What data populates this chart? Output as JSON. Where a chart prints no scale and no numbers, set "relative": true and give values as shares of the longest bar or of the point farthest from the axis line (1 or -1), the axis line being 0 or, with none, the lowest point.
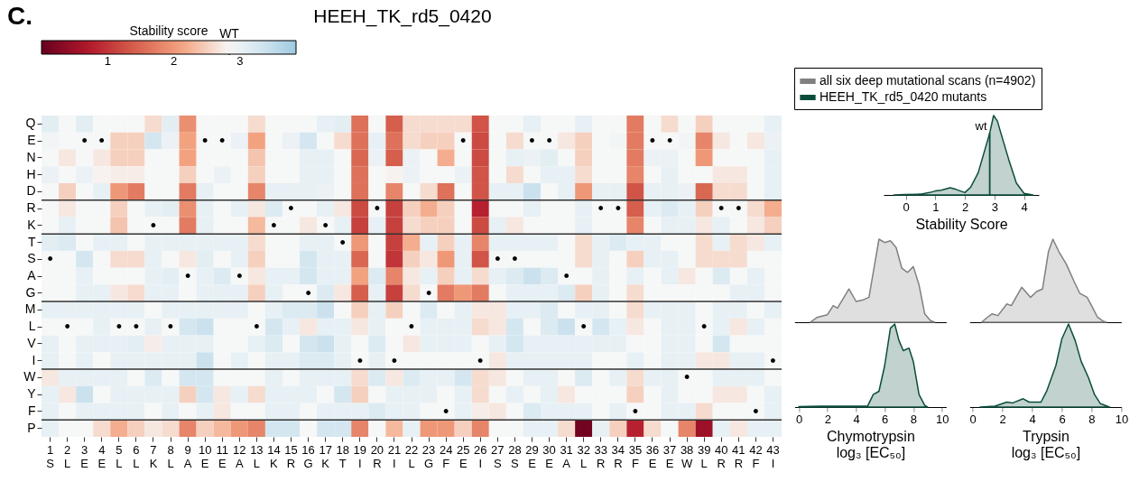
{
  "chart_data": [
    {
      "type": "heatmap",
      "title": "HEEH_TK_rd5_0420",
      "legend_title": "Stability score",
      "annotations": [
        "C.",
        "WT"
      ],
      "categories": [
        "1\nS",
        "2\nL",
        "3\nE",
        "4\nE",
        "5\nL",
        "6\nL",
        "7\nK",
        "8\nL",
        "9\nA",
        "10\nE",
        "11\nE",
        "12\nA",
        "13\nL",
        "14\nK",
        "15\nR",
        "16\nG",
        "17\nK",
        "18\nT",
        "19\nI",
        "20\nR",
        "21\nI",
        "22\nL",
        "23\nG",
        "24\nF",
        "25\nE",
        "26\nI",
        "27\nS",
        "28\nS",
        "29\nE",
        "30\nE",
        "31\nA",
        "32\nL",
        "33\nR",
        "34\nR",
        "35\nF",
        "36\nE",
        "37\nE",
        "38\nW",
        "39\nL",
        "40\nR",
        "41\nR",
        "42\nF",
        "43\nI"
      ],
      "y_categories": [
        "Q",
        "E",
        "N",
        "H",
        "D",
        "R",
        "K",
        "T",
        "S",
        "A",
        "G",
        "M",
        "L",
        "V",
        "I",
        "W",
        "Y",
        "F",
        "P"
      ],
      "clim": [
        0,
        3.85
      ],
      "cticks": [
        1,
        2,
        3
      ],
      "cells": [
        [
          3.1,
          2.85,
          3.1,
          2.85,
          2.85,
          2.85,
          2.6,
          3.1,
          1.9,
          2.85,
          2.85,
          2.85,
          2.6,
          2.85,
          2.85,
          2.85,
          3.05,
          3.1,
          1.6,
          2.85,
          1.4,
          2.6,
          2.6,
          2.6,
          2.6,
          1.3,
          2.85,
          2.85,
          3.05,
          2.85,
          2.85,
          3.05,
          2.85,
          2.85,
          1.7,
          2.85,
          2.6,
          2.85,
          2.5,
          2.85,
          2.85,
          2.85,
          3.05
        ],
        [
          2.9,
          2.85,
          2.85,
          2.85,
          2.5,
          2.5,
          3.3,
          3.0,
          2.1,
          2.85,
          2.85,
          3.0,
          2.1,
          2.85,
          3.0,
          3.3,
          2.85,
          2.6,
          1.6,
          3.05,
          1.6,
          2.6,
          2.5,
          2.5,
          2.85,
          1.2,
          2.85,
          2.6,
          2.85,
          2.85,
          2.7,
          2.5,
          2.85,
          2.9,
          1.7,
          2.85,
          2.85,
          2.9,
          1.8,
          2.7,
          2.85,
          2.7,
          3.0
        ],
        [
          2.85,
          2.7,
          2.85,
          2.7,
          2.5,
          2.5,
          2.85,
          2.85,
          2.1,
          2.85,
          2.85,
          2.85,
          2.4,
          2.85,
          2.85,
          3.05,
          3.05,
          2.85,
          1.5,
          3.0,
          1.4,
          3.0,
          2.85,
          2.2,
          2.85,
          1.2,
          2.85,
          3.05,
          3.0,
          3.1,
          2.85,
          2.5,
          2.85,
          2.85,
          1.7,
          3.0,
          3.0,
          2.85,
          2.0,
          2.85,
          2.85,
          2.85,
          3.05
        ],
        [
          3.0,
          2.85,
          3.0,
          2.8,
          2.75,
          2.75,
          2.85,
          2.85,
          2.5,
          2.85,
          3.0,
          2.85,
          2.5,
          2.85,
          2.85,
          3.05,
          3.05,
          2.85,
          1.6,
          2.85,
          2.8,
          3.0,
          2.85,
          2.85,
          3.0,
          1.3,
          2.85,
          2.6,
          2.85,
          3.05,
          3.05,
          2.6,
          2.85,
          2.85,
          1.8,
          2.85,
          3.05,
          2.85,
          2.85,
          2.7,
          2.7,
          2.85,
          3.05
        ],
        [
          2.85,
          2.5,
          2.85,
          3.05,
          2.0,
          1.7,
          2.85,
          2.85,
          1.7,
          3.05,
          2.85,
          2.85,
          1.8,
          3.05,
          3.05,
          3.05,
          3.0,
          2.85,
          1.6,
          2.85,
          1.8,
          2.85,
          2.6,
          1.6,
          2.85,
          1.3,
          3.05,
          3.05,
          3.4,
          2.85,
          3.05,
          2.0,
          3.05,
          3.05,
          1.3,
          3.05,
          3.05,
          3.0,
          1.5,
          2.6,
          2.6,
          2.85,
          3.05
        ],
        [
          2.85,
          2.7,
          2.85,
          2.85,
          2.5,
          2.85,
          3.05,
          3.1,
          1.9,
          3.05,
          2.85,
          3.05,
          2.7,
          3.2,
          2.85,
          2.85,
          3.05,
          2.7,
          1.2,
          2.85,
          1.1,
          2.5,
          2.2,
          2.5,
          2.85,
          0.8,
          2.85,
          2.85,
          3.05,
          2.85,
          2.85,
          3.05,
          2.85,
          2.85,
          1.4,
          3.05,
          3.2,
          3.05,
          2.5,
          2.85,
          2.85,
          2.6,
          2.2
        ],
        [
          2.85,
          3.05,
          2.85,
          2.85,
          2.4,
          2.85,
          2.85,
          2.85,
          1.7,
          3.05,
          2.85,
          2.85,
          2.3,
          2.85,
          2.85,
          2.7,
          2.85,
          3.05,
          1.1,
          3.05,
          1.1,
          2.6,
          2.5,
          2.5,
          2.85,
          1.2,
          3.05,
          2.7,
          2.85,
          2.85,
          2.85,
          3.05,
          2.85,
          2.85,
          1.8,
          2.85,
          3.05,
          3.05,
          2.7,
          3.05,
          2.85,
          2.7,
          2.5
        ],
        [
          3.1,
          3.2,
          2.85,
          3.05,
          3.05,
          2.85,
          3.05,
          3.05,
          3.05,
          3.05,
          3.05,
          3.05,
          2.6,
          2.85,
          2.85,
          3.05,
          3.05,
          2.85,
          2.0,
          2.85,
          1.1,
          2.2,
          3.05,
          2.5,
          3.05,
          1.8,
          3.05,
          3.05,
          3.05,
          3.05,
          2.85,
          2.6,
          3.05,
          3.2,
          3.05,
          3.05,
          2.85,
          2.85,
          2.6,
          3.05,
          2.6,
          2.7,
          3.05
        ],
        [
          2.85,
          2.85,
          3.3,
          2.85,
          2.6,
          2.6,
          3.05,
          2.85,
          2.7,
          3.1,
          2.85,
          3.05,
          2.5,
          2.85,
          2.85,
          3.3,
          3.05,
          3.05,
          1.5,
          2.85,
          1.0,
          2.5,
          2.7,
          2.0,
          3.05,
          1.3,
          2.85,
          2.85,
          2.85,
          2.85,
          2.85,
          2.6,
          3.05,
          2.85,
          2.5,
          3.05,
          3.05,
          2.85,
          2.6,
          2.6,
          2.6,
          2.85,
          2.85
        ],
        [
          2.85,
          2.85,
          3.05,
          2.85,
          2.85,
          2.85,
          3.05,
          3.1,
          2.85,
          3.05,
          3.2,
          2.85,
          2.7,
          3.05,
          3.05,
          3.3,
          3.05,
          3.05,
          2.1,
          3.2,
          1.8,
          2.7,
          3.05,
          2.5,
          3.05,
          2.6,
          3.05,
          3.2,
          3.4,
          3.2,
          2.85,
          2.85,
          3.05,
          2.85,
          3.05,
          2.85,
          3.05,
          2.7,
          2.85,
          3.2,
          2.85,
          3.05,
          2.85
        ],
        [
          2.85,
          2.85,
          3.05,
          3.05,
          2.7,
          2.6,
          3.05,
          3.05,
          2.85,
          3.05,
          3.05,
          3.05,
          2.5,
          3.05,
          2.85,
          2.85,
          3.2,
          2.7,
          1.4,
          3.05,
          1.1,
          2.6,
          2.85,
          1.7,
          2.0,
          1.7,
          2.85,
          3.05,
          3.05,
          3.05,
          3.2,
          2.5,
          3.05,
          2.85,
          2.6,
          2.85,
          2.85,
          2.85,
          2.85,
          2.85,
          3.05,
          3.05,
          2.85
        ],
        [
          3.05,
          3.05,
          3.05,
          3.05,
          3.05,
          3.05,
          2.85,
          3.05,
          3.05,
          3.05,
          3.05,
          3.05,
          2.85,
          3.05,
          3.2,
          3.2,
          3.4,
          2.85,
          2.5,
          3.05,
          2.5,
          2.85,
          3.2,
          2.85,
          3.05,
          2.7,
          2.7,
          3.05,
          3.05,
          3.2,
          2.85,
          3.05,
          3.05,
          2.85,
          2.6,
          3.05,
          3.05,
          3.05,
          2.85,
          3.05,
          3.05,
          2.85,
          3.05
        ],
        [
          2.85,
          2.85,
          2.85,
          3.05,
          2.85,
          2.85,
          3.05,
          2.85,
          3.3,
          3.4,
          2.85,
          2.85,
          2.85,
          3.3,
          3.05,
          2.7,
          3.05,
          3.05,
          2.7,
          3.05,
          2.85,
          2.85,
          3.05,
          3.05,
          3.05,
          2.6,
          2.7,
          3.3,
          2.85,
          3.2,
          3.4,
          2.85,
          3.3,
          3.05,
          2.7,
          2.85,
          3.05,
          3.05,
          2.85,
          3.05,
          2.7,
          3.05,
          2.85
        ],
        [
          3.05,
          2.85,
          3.05,
          3.05,
          3.05,
          3.1,
          2.75,
          3.05,
          3.05,
          3.05,
          2.85,
          2.85,
          3.05,
          3.2,
          2.85,
          3.3,
          3.4,
          3.05,
          2.85,
          3.2,
          2.85,
          2.7,
          3.05,
          3.05,
          3.05,
          2.85,
          3.05,
          3.3,
          3.05,
          3.05,
          3.05,
          3.05,
          3.05,
          3.05,
          2.85,
          2.85,
          3.05,
          3.05,
          2.85,
          3.3,
          2.85,
          2.85,
          2.85
        ],
        [
          3.05,
          2.85,
          3.05,
          2.85,
          3.05,
          3.05,
          3.05,
          3.05,
          3.05,
          3.4,
          2.85,
          3.05,
          2.85,
          3.05,
          3.05,
          3.2,
          3.2,
          3.05,
          2.85,
          3.05,
          2.85,
          2.85,
          2.85,
          2.85,
          2.85,
          2.85,
          2.7,
          3.05,
          3.05,
          3.05,
          3.05,
          3.05,
          2.85,
          2.85,
          3.05,
          2.85,
          3.05,
          3.05,
          2.7,
          2.7,
          3.05,
          3.05,
          2.85
        ],
        [
          2.7,
          3.05,
          3.05,
          3.05,
          3.05,
          2.85,
          3.2,
          2.85,
          3.3,
          3.3,
          2.85,
          2.85,
          2.85,
          3.05,
          2.85,
          3.05,
          3.05,
          3.05,
          2.6,
          3.2,
          2.7,
          3.2,
          3.05,
          3.05,
          3.3,
          2.6,
          2.7,
          2.85,
          3.05,
          3.05,
          2.85,
          3.2,
          2.85,
          3.05,
          2.6,
          3.05,
          3.05,
          2.85,
          2.85,
          3.05,
          3.05,
          3.05,
          2.85
        ],
        [
          3.05,
          2.7,
          3.4,
          2.85,
          3.05,
          3.05,
          3.05,
          3.05,
          2.5,
          3.3,
          2.7,
          3.05,
          2.6,
          3.05,
          3.05,
          3.05,
          2.85,
          3.3,
          2.5,
          2.85,
          3.05,
          3.05,
          3.05,
          2.85,
          3.05,
          2.6,
          2.85,
          3.05,
          2.85,
          3.05,
          2.7,
          2.85,
          2.85,
          2.85,
          2.5,
          2.85,
          3.05,
          2.85,
          2.85,
          2.7,
          2.7,
          2.85,
          3.05
        ],
        [
          3.05,
          2.85,
          3.05,
          3.05,
          3.05,
          3.05,
          2.85,
          3.05,
          2.85,
          3.05,
          2.7,
          2.85,
          2.85,
          3.05,
          3.05,
          2.85,
          3.05,
          3.05,
          3.05,
          3.2,
          3.05,
          3.05,
          2.85,
          2.85,
          3.05,
          2.75,
          2.7,
          2.85,
          3.2,
          3.05,
          3.05,
          3.05,
          2.85,
          3.05,
          2.85,
          2.85,
          3.05,
          3.05,
          2.6,
          2.85,
          2.85,
          2.85,
          3.05
        ],
        [
          3.05,
          2.85,
          2.85,
          2.6,
          2.2,
          2.5,
          2.7,
          2.6,
          1.8,
          2.5,
          2.3,
          2.0,
          1.8,
          3.3,
          3.3,
          2.85,
          3.3,
          3.3,
          1.8,
          2.85,
          2.3,
          3.05,
          2.0,
          2.0,
          2.5,
          1.8,
          2.85,
          2.85,
          3.05,
          3.05,
          2.6,
          0.1,
          3.05,
          2.5,
          0.8,
          2.6,
          2.85,
          1.8,
          0.5,
          3.05,
          2.7,
          3.05,
          3.05
        ]
      ],
      "cell_labels": [
        [
          null,
          null,
          null,
          null,
          null,
          null,
          null,
          null,
          null,
          null,
          null,
          null,
          null,
          null,
          null,
          null,
          null,
          null,
          null,
          null,
          null,
          null,
          null,
          null,
          null,
          null,
          null,
          null,
          null,
          null,
          null,
          null,
          null,
          null,
          null,
          null,
          null,
          null,
          null,
          null,
          null,
          null,
          null
        ],
        [
          null,
          null,
          "•",
          "•",
          null,
          null,
          null,
          null,
          null,
          "•",
          "•",
          null,
          null,
          null,
          null,
          null,
          null,
          null,
          null,
          null,
          null,
          null,
          null,
          null,
          "•",
          null,
          null,
          null,
          "•",
          "•",
          null,
          null,
          null,
          null,
          null,
          "•",
          "•",
          null,
          null,
          null,
          null,
          null,
          null
        ],
        [
          null,
          null,
          null,
          null,
          null,
          null,
          null,
          null,
          null,
          null,
          null,
          null,
          null,
          null,
          null,
          null,
          null,
          null,
          null,
          null,
          null,
          null,
          null,
          null,
          null,
          null,
          null,
          null,
          null,
          null,
          null,
          null,
          null,
          null,
          null,
          null,
          null,
          null,
          null,
          null,
          null,
          null,
          null
        ],
        [
          null,
          null,
          null,
          null,
          null,
          null,
          null,
          null,
          null,
          null,
          null,
          null,
          null,
          null,
          null,
          null,
          null,
          null,
          null,
          null,
          null,
          null,
          null,
          null,
          null,
          null,
          null,
          null,
          null,
          null,
          null,
          null,
          null,
          null,
          null,
          null,
          null,
          null,
          null,
          null,
          null,
          null,
          null
        ],
        [
          null,
          null,
          null,
          null,
          null,
          null,
          null,
          null,
          null,
          null,
          null,
          null,
          null,
          null,
          null,
          null,
          null,
          null,
          null,
          null,
          null,
          null,
          null,
          null,
          null,
          null,
          null,
          null,
          null,
          null,
          null,
          null,
          null,
          null,
          null,
          null,
          null,
          null,
          null,
          null,
          null,
          null,
          null
        ],
        [
          null,
          null,
          null,
          null,
          null,
          null,
          null,
          null,
          null,
          null,
          null,
          null,
          null,
          null,
          "•",
          null,
          null,
          null,
          null,
          "•",
          null,
          null,
          null,
          null,
          null,
          null,
          null,
          null,
          null,
          null,
          null,
          null,
          "•",
          "•",
          null,
          null,
          null,
          null,
          null,
          "•",
          "•",
          null,
          null
        ],
        [
          null,
          null,
          null,
          null,
          null,
          null,
          "•",
          null,
          null,
          null,
          null,
          null,
          null,
          "•",
          null,
          null,
          "•",
          null,
          null,
          null,
          null,
          null,
          null,
          null,
          null,
          null,
          null,
          null,
          null,
          null,
          null,
          null,
          null,
          null,
          null,
          null,
          null,
          null,
          null,
          null,
          null,
          null,
          null
        ],
        [
          null,
          null,
          null,
          null,
          null,
          null,
          null,
          null,
          null,
          null,
          null,
          null,
          null,
          null,
          null,
          null,
          null,
          "•",
          null,
          null,
          null,
          null,
          null,
          null,
          null,
          null,
          null,
          null,
          null,
          null,
          null,
          null,
          null,
          null,
          null,
          null,
          null,
          null,
          null,
          null,
          null,
          null,
          null
        ],
        [
          "•",
          null,
          null,
          null,
          null,
          null,
          null,
          null,
          null,
          null,
          null,
          null,
          null,
          null,
          null,
          null,
          null,
          null,
          null,
          null,
          null,
          null,
          null,
          null,
          null,
          null,
          "•",
          "•",
          null,
          null,
          null,
          null,
          null,
          null,
          null,
          null,
          null,
          null,
          null,
          null,
          null,
          null,
          null
        ],
        [
          null,
          null,
          null,
          null,
          null,
          null,
          null,
          null,
          "•",
          null,
          null,
          "•",
          null,
          null,
          null,
          null,
          null,
          null,
          null,
          null,
          null,
          null,
          null,
          null,
          null,
          null,
          null,
          null,
          null,
          null,
          "•",
          null,
          null,
          null,
          null,
          null,
          null,
          null,
          null,
          null,
          null,
          null,
          null
        ],
        [
          null,
          null,
          null,
          null,
          null,
          null,
          null,
          null,
          null,
          null,
          null,
          null,
          null,
          null,
          null,
          "•",
          null,
          null,
          null,
          null,
          null,
          null,
          "•",
          null,
          null,
          null,
          null,
          null,
          null,
          null,
          null,
          null,
          null,
          null,
          null,
          null,
          null,
          null,
          null,
          null,
          null,
          null,
          null
        ],
        [
          null,
          null,
          null,
          null,
          null,
          null,
          null,
          null,
          null,
          null,
          null,
          null,
          null,
          null,
          null,
          null,
          null,
          null,
          null,
          null,
          null,
          null,
          null,
          null,
          null,
          null,
          null,
          null,
          null,
          null,
          null,
          null,
          null,
          null,
          null,
          null,
          null,
          null,
          null,
          null,
          null,
          null,
          null
        ],
        [
          null,
          "•",
          null,
          null,
          "•",
          "•",
          null,
          "•",
          null,
          null,
          null,
          null,
          "•",
          null,
          null,
          null,
          null,
          null,
          null,
          null,
          null,
          "•",
          null,
          null,
          null,
          null,
          null,
          null,
          null,
          null,
          null,
          "•",
          null,
          null,
          null,
          null,
          null,
          null,
          "•",
          null,
          null,
          null,
          null
        ],
        [
          null,
          null,
          null,
          null,
          null,
          null,
          null,
          null,
          null,
          null,
          null,
          null,
          null,
          null,
          null,
          null,
          null,
          null,
          null,
          null,
          null,
          null,
          null,
          null,
          null,
          null,
          null,
          null,
          null,
          null,
          null,
          null,
          null,
          null,
          null,
          null,
          null,
          null,
          null,
          null,
          null,
          null,
          null
        ],
        [
          null,
          null,
          null,
          null,
          null,
          null,
          null,
          null,
          null,
          null,
          null,
          null,
          null,
          null,
          null,
          null,
          null,
          null,
          "•",
          null,
          "•",
          null,
          null,
          null,
          null,
          "•",
          null,
          null,
          null,
          null,
          null,
          null,
          null,
          null,
          null,
          null,
          null,
          null,
          null,
          null,
          null,
          null,
          "•"
        ],
        [
          null,
          null,
          null,
          null,
          null,
          null,
          null,
          null,
          null,
          null,
          null,
          null,
          null,
          null,
          null,
          null,
          null,
          null,
          null,
          null,
          null,
          null,
          null,
          null,
          null,
          null,
          null,
          null,
          null,
          null,
          null,
          null,
          null,
          null,
          null,
          null,
          null,
          "•",
          null,
          null,
          null,
          null,
          null
        ],
        [
          null,
          null,
          null,
          null,
          null,
          null,
          null,
          null,
          null,
          null,
          null,
          null,
          null,
          null,
          null,
          null,
          null,
          null,
          null,
          null,
          null,
          null,
          null,
          null,
          null,
          null,
          null,
          null,
          null,
          null,
          null,
          null,
          null,
          null,
          null,
          null,
          null,
          null,
          null,
          null,
          null,
          null,
          null
        ],
        [
          null,
          null,
          null,
          null,
          null,
          null,
          null,
          null,
          null,
          null,
          null,
          null,
          null,
          null,
          null,
          null,
          null,
          null,
          null,
          null,
          null,
          null,
          null,
          "•",
          null,
          null,
          null,
          null,
          null,
          null,
          null,
          null,
          null,
          null,
          "•",
          null,
          null,
          null,
          null,
          null,
          null,
          "•",
          null
        ],
        [
          null,
          null,
          null,
          null,
          null,
          null,
          null,
          null,
          null,
          null,
          null,
          null,
          null,
          null,
          null,
          null,
          null,
          null,
          null,
          null,
          null,
          null,
          null,
          null,
          null,
          null,
          null,
          null,
          null,
          null,
          null,
          null,
          null,
          null,
          null,
          null,
          null,
          null,
          null,
          null,
          null,
          null,
          null
        ]
      ],
      "ref_lines": [
        {
          "axis": "y",
          "value": "D"
        },
        {
          "axis": "y",
          "value": "K"
        },
        {
          "axis": "y",
          "value": "G"
        },
        {
          "axis": "y",
          "value": "I"
        },
        {
          "axis": "y",
          "value": "F"
        }
      ]
    },
    {
      "type": "area",
      "relative": true,
      "xlabel": "Stability Score",
      "xlim": [
        -0.75,
        4.5
      ],
      "xticks": [
        0,
        1,
        2,
        3,
        4
      ],
      "tick_labels": "x",
      "ref_lines": [
        {
          "axis": "x",
          "value": 2.84,
          "label": "wt"
        }
      ],
      "series": [
        {
          "color": "#0b4d3c",
          "x": [
            -0.4,
            0,
            0.5,
            0.8,
            1.0,
            1.2,
            1.5,
            1.7,
            2.0,
            2.2,
            2.45,
            2.66,
            2.84,
            2.97,
            3.1,
            3.2,
            3.48,
            3.74,
            4.0,
            4.3
          ],
          "values": [
            0,
            0.005,
            0.01,
            0.03,
            0.05,
            0.06,
            0.09,
            0.07,
            0.03,
            0.1,
            0.28,
            0.55,
            0.78,
            1.0,
            0.93,
            0.8,
            0.45,
            0.15,
            0.02,
            0
          ]
        }
      ]
    },
    {
      "type": "area",
      "relative": true,
      "xlim": [
        -0.3,
        10.3
      ],
      "xticks": [
        0,
        2,
        4,
        6,
        8,
        10
      ],
      "tick_labels": false,
      "legend": "top",
      "series": [
        {
          "name": "all six deep mutational scans (n=4902)",
          "color": "#808080",
          "x": [
            0.8,
            1.3,
            2.0,
            2.4,
            2.7,
            3.5,
            4.0,
            4.5,
            4.9,
            5.3,
            5.6,
            6.0,
            6.4,
            6.8,
            7.2,
            7.6,
            8.0,
            8.4,
            8.8,
            9.2,
            9.5
          ],
          "values": [
            0,
            0.06,
            0.09,
            0.2,
            0.17,
            0.4,
            0.25,
            0.27,
            0.3,
            0.7,
            1.0,
            0.96,
            0.98,
            0.9,
            0.65,
            0.6,
            0.67,
            0.45,
            0.1,
            0.02,
            0
          ]
        }
      ]
    },
    {
      "type": "area",
      "relative": true,
      "xlabel": "Chymotrypsin\nlog₃ [EC₅₀]",
      "xlim": [
        -0.3,
        10.3
      ],
      "xticks": [
        0,
        2,
        4,
        6,
        8,
        10
      ],
      "tick_labels": "x",
      "legend": "top",
      "series": [
        {
          "name": "HEEH_TK_rd5_0420 mutants",
          "color": "#0b4d3c",
          "x": [
            0,
            1.5,
            3.8,
            4.8,
            5.2,
            5.6,
            6.0,
            6.4,
            6.7,
            7.0,
            7.3,
            7.7,
            8.0,
            8.4,
            8.8,
            9.0
          ],
          "values": [
            0.005,
            0.01,
            0.01,
            0.01,
            0.15,
            0.19,
            0.5,
            0.95,
            1.0,
            0.8,
            0.68,
            0.71,
            0.55,
            0.15,
            0.02,
            0
          ]
        }
      ]
    },
    {
      "type": "area",
      "relative": true,
      "xlim": [
        -0.2,
        10.0
      ],
      "xticks": [
        0,
        2,
        4,
        6,
        8,
        10
      ],
      "tick_labels": false,
      "series": [
        {
          "color": "#808080",
          "x": [
            0.6,
            1.0,
            1.3,
            1.7,
            2.3,
            2.6,
            3.3,
            3.9,
            4.3,
            4.7,
            5.1,
            5.4,
            5.8,
            6.3,
            6.8,
            7.2,
            7.7,
            8.0,
            8.4,
            8.8,
            9.0
          ],
          "values": [
            0,
            0.06,
            0.1,
            0.08,
            0.22,
            0.2,
            0.42,
            0.3,
            0.37,
            0.4,
            0.85,
            1.0,
            0.85,
            0.7,
            0.5,
            0.35,
            0.3,
            0.2,
            0.06,
            0.01,
            0
          ]
        }
      ]
    },
    {
      "type": "area",
      "relative": true,
      "xlabel": "Trypsin\nlog₃ [EC₅₀]",
      "xlim": [
        -0.2,
        10.0
      ],
      "xticks": [
        0,
        2,
        4,
        6,
        8,
        10
      ],
      "tick_labels": "x",
      "series": [
        {
          "color": "#0b4d3c",
          "x": [
            0.5,
            1.5,
            2.3,
            2.7,
            3.4,
            3.8,
            4.6,
            5.0,
            5.6,
            6.0,
            6.45,
            6.9,
            7.3,
            7.8,
            8.2,
            8.6,
            9.2
          ],
          "values": [
            0,
            0.01,
            0.06,
            0.05,
            0.1,
            0.06,
            0.06,
            0.2,
            0.5,
            0.82,
            1.0,
            0.8,
            0.55,
            0.35,
            0.15,
            0.04,
            0
          ]
        }
      ]
    }
  ]
}
